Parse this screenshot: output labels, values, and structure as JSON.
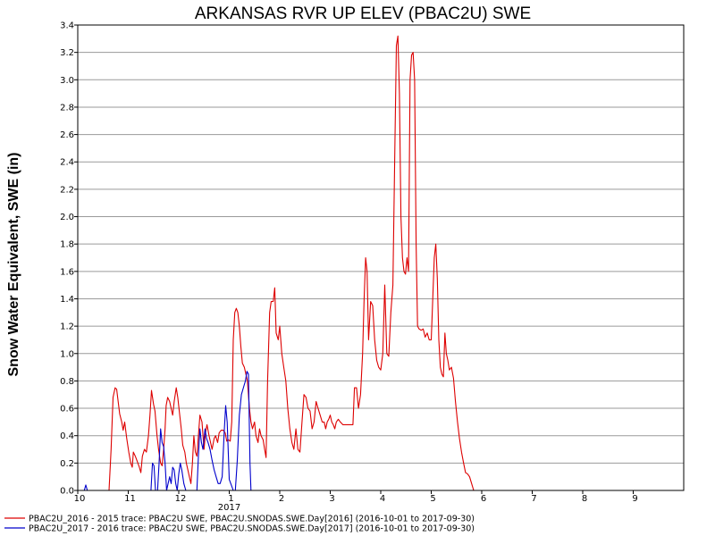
{
  "chart_data": {
    "type": "line",
    "title": "ARKANSAS RVR UP ELEV (PBAC2U) SWE",
    "ylabel": "Snow Water Equivalent, SWE (in)",
    "xlabel": "",
    "xlim": [
      0,
      12
    ],
    "ylim": [
      0,
      3.4
    ],
    "grid": true,
    "x_tick_labels": [
      {
        "x": 0,
        "label": "10"
      },
      {
        "x": 1,
        "label": "11"
      },
      {
        "x": 2,
        "label": "12"
      },
      {
        "x": 3,
        "label": "1"
      },
      {
        "x": 4,
        "label": "2"
      },
      {
        "x": 5,
        "label": "3"
      },
      {
        "x": 6,
        "label": "4"
      },
      {
        "x": 7,
        "label": "5"
      },
      {
        "x": 8,
        "label": "6"
      },
      {
        "x": 9,
        "label": "7"
      },
      {
        "x": 10,
        "label": "8"
      },
      {
        "x": 11,
        "label": "9"
      }
    ],
    "year_label": {
      "x": 3,
      "label": "2017"
    },
    "y_ticks": [
      0.0,
      0.2,
      0.4,
      0.6,
      0.8,
      1.0,
      1.2,
      1.4,
      1.6,
      1.8,
      2.0,
      2.2,
      2.4,
      2.6,
      2.8,
      3.0,
      3.2,
      3.4
    ],
    "y_tick_labels": [
      "0.0",
      "0.2",
      "0.4",
      "0.6",
      "0.8",
      "1.0",
      "1.2",
      "1.4",
      "1.6",
      "1.8",
      "2.0",
      "2.2",
      "2.4",
      "2.6",
      "2.8",
      "3.0",
      "3.2",
      "3.4"
    ],
    "legend_position": "bottom",
    "series": [
      {
        "name": "PBAC2U_2016 - 2015 trace: PBAC2U SWE, PBAC2U.SNODAS.SWE.Day[2016] (2016-10-01 to 2017-09-30)",
        "color": "#dd0000",
        "points": [
          [
            0.0,
            0.0
          ],
          [
            0.62,
            0.0
          ],
          [
            0.66,
            0.3
          ],
          [
            0.7,
            0.68
          ],
          [
            0.74,
            0.75
          ],
          [
            0.77,
            0.74
          ],
          [
            0.8,
            0.65
          ],
          [
            0.83,
            0.56
          ],
          [
            0.87,
            0.5
          ],
          [
            0.9,
            0.44
          ],
          [
            0.93,
            0.5
          ],
          [
            0.97,
            0.38
          ],
          [
            1.01,
            0.28
          ],
          [
            1.05,
            0.2
          ],
          [
            1.08,
            0.17
          ],
          [
            1.1,
            0.28
          ],
          [
            1.14,
            0.25
          ],
          [
            1.18,
            0.21
          ],
          [
            1.22,
            0.17
          ],
          [
            1.25,
            0.13
          ],
          [
            1.28,
            0.25
          ],
          [
            1.32,
            0.3
          ],
          [
            1.36,
            0.28
          ],
          [
            1.4,
            0.4
          ],
          [
            1.43,
            0.55
          ],
          [
            1.46,
            0.73
          ],
          [
            1.5,
            0.63
          ],
          [
            1.53,
            0.58
          ],
          [
            1.57,
            0.4
          ],
          [
            1.6,
            0.3
          ],
          [
            1.64,
            0.2
          ],
          [
            1.67,
            0.18
          ],
          [
            1.7,
            0.3
          ],
          [
            1.73,
            0.45
          ],
          [
            1.75,
            0.62
          ],
          [
            1.78,
            0.68
          ],
          [
            1.82,
            0.65
          ],
          [
            1.85,
            0.6
          ],
          [
            1.88,
            0.55
          ],
          [
            1.91,
            0.65
          ],
          [
            1.95,
            0.75
          ],
          [
            1.98,
            0.68
          ],
          [
            2.02,
            0.55
          ],
          [
            2.05,
            0.45
          ],
          [
            2.08,
            0.33
          ],
          [
            2.12,
            0.28
          ],
          [
            2.15,
            0.2
          ],
          [
            2.18,
            0.15
          ],
          [
            2.21,
            0.1
          ],
          [
            2.24,
            0.05
          ],
          [
            2.27,
            0.2
          ],
          [
            2.3,
            0.4
          ],
          [
            2.33,
            0.28
          ],
          [
            2.36,
            0.25
          ],
          [
            2.39,
            0.4
          ],
          [
            2.42,
            0.55
          ],
          [
            2.46,
            0.5
          ],
          [
            2.5,
            0.3
          ],
          [
            2.53,
            0.42
          ],
          [
            2.56,
            0.48
          ],
          [
            2.6,
            0.4
          ],
          [
            2.63,
            0.35
          ],
          [
            2.66,
            0.3
          ],
          [
            2.7,
            0.38
          ],
          [
            2.73,
            0.4
          ],
          [
            2.77,
            0.35
          ],
          [
            2.8,
            0.42
          ],
          [
            2.84,
            0.44
          ],
          [
            2.88,
            0.44
          ],
          [
            2.92,
            0.42
          ],
          [
            2.95,
            0.36
          ],
          [
            2.98,
            0.37
          ],
          [
            3.02,
            0.36
          ],
          [
            3.05,
            0.5
          ],
          [
            3.08,
            1.1
          ],
          [
            3.11,
            1.3
          ],
          [
            3.14,
            1.33
          ],
          [
            3.17,
            1.3
          ],
          [
            3.2,
            1.2
          ],
          [
            3.23,
            1.05
          ],
          [
            3.26,
            0.93
          ],
          [
            3.3,
            0.9
          ],
          [
            3.33,
            0.85
          ],
          [
            3.36,
            0.8
          ],
          [
            3.4,
            0.6
          ],
          [
            3.43,
            0.5
          ],
          [
            3.46,
            0.45
          ],
          [
            3.5,
            0.5
          ],
          [
            3.53,
            0.4
          ],
          [
            3.57,
            0.35
          ],
          [
            3.6,
            0.45
          ],
          [
            3.63,
            0.4
          ],
          [
            3.67,
            0.37
          ],
          [
            3.7,
            0.3
          ],
          [
            3.73,
            0.24
          ],
          [
            3.76,
            0.8
          ],
          [
            3.8,
            1.3
          ],
          [
            3.83,
            1.38
          ],
          [
            3.87,
            1.38
          ],
          [
            3.9,
            1.48
          ],
          [
            3.93,
            1.15
          ],
          [
            3.97,
            1.1
          ],
          [
            4.0,
            1.2
          ],
          [
            4.04,
            1.0
          ],
          [
            4.08,
            0.9
          ],
          [
            4.12,
            0.8
          ],
          [
            4.16,
            0.6
          ],
          [
            4.2,
            0.45
          ],
          [
            4.24,
            0.35
          ],
          [
            4.28,
            0.3
          ],
          [
            4.32,
            0.45
          ],
          [
            4.36,
            0.3
          ],
          [
            4.4,
            0.28
          ],
          [
            4.44,
            0.5
          ],
          [
            4.48,
            0.7
          ],
          [
            4.52,
            0.68
          ],
          [
            4.56,
            0.6
          ],
          [
            4.6,
            0.58
          ],
          [
            4.64,
            0.45
          ],
          [
            4.68,
            0.5
          ],
          [
            4.72,
            0.65
          ],
          [
            4.76,
            0.6
          ],
          [
            4.8,
            0.55
          ],
          [
            4.84,
            0.5
          ],
          [
            4.88,
            0.5
          ],
          [
            4.91,
            0.45
          ],
          [
            4.94,
            0.5
          ],
          [
            4.97,
            0.52
          ],
          [
            5.0,
            0.55
          ],
          [
            5.03,
            0.5
          ],
          [
            5.06,
            0.48
          ],
          [
            5.09,
            0.45
          ],
          [
            5.12,
            0.5
          ],
          [
            5.16,
            0.52
          ],
          [
            5.2,
            0.5
          ],
          [
            5.25,
            0.48
          ],
          [
            5.3,
            0.48
          ],
          [
            5.35,
            0.48
          ],
          [
            5.4,
            0.48
          ],
          [
            5.45,
            0.48
          ],
          [
            5.48,
            0.75
          ],
          [
            5.52,
            0.75
          ],
          [
            5.56,
            0.6
          ],
          [
            5.6,
            0.7
          ],
          [
            5.64,
            1.0
          ],
          [
            5.67,
            1.4
          ],
          [
            5.7,
            1.7
          ],
          [
            5.73,
            1.6
          ],
          [
            5.76,
            1.1
          ],
          [
            5.8,
            1.38
          ],
          [
            5.84,
            1.35
          ],
          [
            5.88,
            1.1
          ],
          [
            5.92,
            0.95
          ],
          [
            5.96,
            0.9
          ],
          [
            6.0,
            0.88
          ],
          [
            6.04,
            1.0
          ],
          [
            6.08,
            1.5
          ],
          [
            6.12,
            1.0
          ],
          [
            6.16,
            0.98
          ],
          [
            6.2,
            1.3
          ],
          [
            6.24,
            1.5
          ],
          [
            6.28,
            2.5
          ],
          [
            6.31,
            3.25
          ],
          [
            6.34,
            3.32
          ],
          [
            6.37,
            2.9
          ],
          [
            6.4,
            2.0
          ],
          [
            6.43,
            1.7
          ],
          [
            6.46,
            1.6
          ],
          [
            6.49,
            1.58
          ],
          [
            6.52,
            1.7
          ],
          [
            6.55,
            1.6
          ],
          [
            6.58,
            3.0
          ],
          [
            6.61,
            3.18
          ],
          [
            6.64,
            3.2
          ],
          [
            6.67,
            3.0
          ],
          [
            6.7,
            1.8
          ],
          [
            6.73,
            1.2
          ],
          [
            6.76,
            1.18
          ],
          [
            6.8,
            1.17
          ],
          [
            6.84,
            1.18
          ],
          [
            6.88,
            1.12
          ],
          [
            6.92,
            1.15
          ],
          [
            6.96,
            1.1
          ],
          [
            7.0,
            1.1
          ],
          [
            7.03,
            1.4
          ],
          [
            7.06,
            1.7
          ],
          [
            7.09,
            1.8
          ],
          [
            7.12,
            1.55
          ],
          [
            7.15,
            1.1
          ],
          [
            7.18,
            0.9
          ],
          [
            7.21,
            0.85
          ],
          [
            7.24,
            0.83
          ],
          [
            7.27,
            1.15
          ],
          [
            7.3,
            1.0
          ],
          [
            7.33,
            0.95
          ],
          [
            7.36,
            0.88
          ],
          [
            7.4,
            0.9
          ],
          [
            7.44,
            0.82
          ],
          [
            7.48,
            0.65
          ],
          [
            7.52,
            0.5
          ],
          [
            7.56,
            0.38
          ],
          [
            7.6,
            0.28
          ],
          [
            7.64,
            0.2
          ],
          [
            7.68,
            0.13
          ],
          [
            7.72,
            0.12
          ],
          [
            7.76,
            0.1
          ],
          [
            7.8,
            0.05
          ],
          [
            7.84,
            0.0
          ],
          [
            11.9,
            0.0
          ]
        ]
      },
      {
        "name": "PBAC2U_2017 - 2016 trace: PBAC2U SWE, PBAC2U.SNODAS.SWE.Day[2017] (2016-10-01 to 2017-09-30)",
        "color": "#0000cc",
        "points": [
          [
            0.0,
            0.0
          ],
          [
            0.13,
            0.0
          ],
          [
            0.16,
            0.04
          ],
          [
            0.19,
            0.0
          ],
          [
            1.45,
            0.0
          ],
          [
            1.48,
            0.2
          ],
          [
            1.51,
            0.18
          ],
          [
            1.54,
            0.0
          ],
          [
            1.58,
            0.0
          ],
          [
            1.61,
            0.2
          ],
          [
            1.64,
            0.45
          ],
          [
            1.67,
            0.35
          ],
          [
            1.7,
            0.32
          ],
          [
            1.73,
            0.2
          ],
          [
            1.76,
            0.0
          ],
          [
            1.79,
            0.05
          ],
          [
            1.82,
            0.1
          ],
          [
            1.85,
            0.05
          ],
          [
            1.88,
            0.17
          ],
          [
            1.91,
            0.15
          ],
          [
            1.94,
            0.05
          ],
          [
            1.97,
            0.0
          ],
          [
            2.0,
            0.12
          ],
          [
            2.03,
            0.2
          ],
          [
            2.06,
            0.15
          ],
          [
            2.1,
            0.05
          ],
          [
            2.14,
            0.0
          ],
          [
            2.36,
            0.0
          ],
          [
            2.39,
            0.25
          ],
          [
            2.42,
            0.45
          ],
          [
            2.45,
            0.35
          ],
          [
            2.48,
            0.3
          ],
          [
            2.52,
            0.45
          ],
          [
            2.55,
            0.38
          ],
          [
            2.58,
            0.35
          ],
          [
            2.62,
            0.3
          ],
          [
            2.66,
            0.22
          ],
          [
            2.7,
            0.15
          ],
          [
            2.74,
            0.1
          ],
          [
            2.78,
            0.05
          ],
          [
            2.82,
            0.05
          ],
          [
            2.86,
            0.1
          ],
          [
            2.9,
            0.42
          ],
          [
            2.93,
            0.62
          ],
          [
            2.96,
            0.5
          ],
          [
            3.0,
            0.08
          ],
          [
            3.04,
            0.04
          ],
          [
            3.08,
            0.0
          ],
          [
            3.12,
            0.0
          ],
          [
            3.16,
            0.22
          ],
          [
            3.2,
            0.55
          ],
          [
            3.24,
            0.7
          ],
          [
            3.28,
            0.75
          ],
          [
            3.32,
            0.8
          ],
          [
            3.35,
            0.87
          ],
          [
            3.38,
            0.85
          ],
          [
            3.41,
            0.2
          ],
          [
            3.43,
            0.0
          ],
          [
            11.9,
            0.0
          ]
        ]
      }
    ]
  }
}
